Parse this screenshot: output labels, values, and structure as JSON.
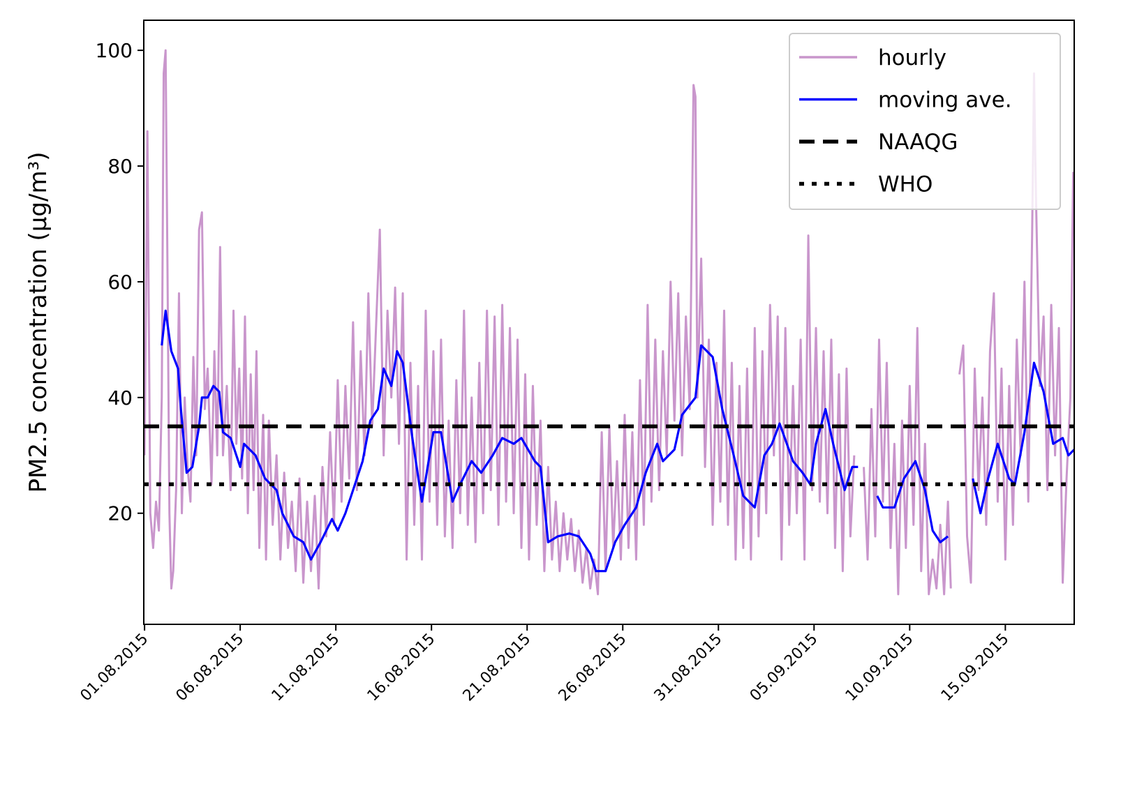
{
  "chart_data": {
    "type": "line",
    "ylabel": "PM2.5 concentration (μg/m³)",
    "xlim": [
      -0.04,
      48.6
    ],
    "ylim": [
      0.8,
      105.2
    ],
    "xticks": [
      {
        "value": 0,
        "label": "01.08.2015"
      },
      {
        "value": 5,
        "label": "06.08.2015"
      },
      {
        "value": 10,
        "label": "11.08.2015"
      },
      {
        "value": 15,
        "label": "16.08.2015"
      },
      {
        "value": 20,
        "label": "21.08.2015"
      },
      {
        "value": 25,
        "label": "26.08.2015"
      },
      {
        "value": 30,
        "label": "31.08.2015"
      },
      {
        "value": 35,
        "label": "05.09.2015"
      },
      {
        "value": 40,
        "label": "10.09.2015"
      },
      {
        "value": 45,
        "label": "15.09.2015"
      }
    ],
    "yticks": [
      20,
      40,
      60,
      80,
      100
    ],
    "legend": "upper right",
    "series": [
      {
        "name": "hourly",
        "color": "#c996cc",
        "x": [
          0,
          0.15,
          0.3,
          0.45,
          0.6,
          0.75,
          0.9,
          1.0,
          1.1,
          1.2,
          1.3,
          1.4,
          1.5,
          1.65,
          1.8,
          1.95,
          2.1,
          2.25,
          2.4,
          2.55,
          2.7,
          2.85,
          3.0,
          3.15,
          3.3,
          3.5,
          3.65,
          3.8,
          3.95,
          4.1,
          4.3,
          4.5,
          4.65,
          4.8,
          4.95,
          5.1,
          5.25,
          5.4,
          5.55,
          5.7,
          5.85,
          6.0,
          6.2,
          6.35,
          6.5,
          6.7,
          6.9,
          7.1,
          7.3,
          7.5,
          7.7,
          7.9,
          8.1,
          8.3,
          8.5,
          8.7,
          8.9,
          9.1,
          9.3,
          9.5,
          9.7,
          9.9,
          10.1,
          10.3,
          10.5,
          10.7,
          10.9,
          11.1,
          11.3,
          11.5,
          11.7,
          11.9,
          12.1,
          12.3,
          12.5,
          12.7,
          12.9,
          13.1,
          13.3,
          13.5,
          13.7,
          13.9,
          14.1,
          14.3,
          14.5,
          14.7,
          14.9,
          15.1,
          15.3,
          15.5,
          15.7,
          15.9,
          16.1,
          16.3,
          16.5,
          16.7,
          16.9,
          17.1,
          17.3,
          17.5,
          17.7,
          17.9,
          18.1,
          18.3,
          18.5,
          18.7,
          18.9,
          19.1,
          19.3,
          19.5,
          19.7,
          19.9,
          20.1,
          20.3,
          20.5,
          20.7,
          20.9,
          21.1,
          21.3,
          21.5,
          21.7,
          21.9,
          22.1,
          22.3,
          22.5,
          22.7,
          22.9,
          23.1,
          23.3,
          23.5,
          23.7,
          23.9,
          24.1,
          24.3,
          24.5,
          24.7,
          24.9,
          25.1,
          25.3,
          25.5,
          25.7,
          25.9,
          26.1,
          26.3,
          26.5,
          26.7,
          26.9,
          27.1,
          27.3,
          27.5,
          27.7,
          27.9,
          28.1,
          28.3,
          28.5,
          28.7,
          28.8,
          28.9,
          29.1,
          29.3,
          29.5,
          29.7,
          29.9,
          30.1,
          30.3,
          30.5,
          30.7,
          30.9,
          31.1,
          31.3,
          31.5,
          31.7,
          31.9,
          32.1,
          32.3,
          32.5,
          32.7,
          32.9,
          33.1,
          33.3,
          33.5,
          33.7,
          33.9,
          34.1,
          34.3,
          34.5,
          34.7,
          34.9,
          35.1,
          35.3,
          35.5,
          35.7,
          35.9,
          36.1,
          36.3,
          36.5,
          36.7,
          36.9,
          37.1,
          37.3,
          37.6,
          37.8,
          38.0,
          38.2,
          38.4,
          38.6,
          38.8,
          39.0,
          39.2,
          39.4,
          39.6,
          39.8,
          40.0,
          40.2,
          40.4,
          40.6,
          40.8,
          41.0,
          41.2,
          41.4,
          41.6,
          41.8,
          42.0,
          42.15,
          42.3,
          42.6,
          42.8,
          43.0,
          43.2,
          43.4,
          43.6,
          43.8,
          44.0,
          44.2,
          44.4,
          44.6,
          44.8,
          45.0,
          45.2,
          45.4,
          45.6,
          45.8,
          46.0,
          46.2,
          46.4,
          46.5,
          46.6,
          46.8,
          47.0,
          47.2,
          47.4,
          47.6,
          47.8,
          48.0,
          48.2,
          48.4,
          48.55
        ],
        "values": [
          30,
          86,
          20,
          14,
          22,
          17,
          40,
          96,
          100,
          62,
          20,
          7,
          10,
          24,
          58,
          20,
          40,
          28,
          22,
          47,
          30,
          69,
          72,
          38,
          45,
          25,
          48,
          30,
          66,
          30,
          42,
          24,
          55,
          32,
          45,
          26,
          54,
          20,
          44,
          24,
          48,
          14,
          37,
          12,
          36,
          18,
          30,
          12,
          27,
          14,
          22,
          10,
          26,
          8,
          22,
          10,
          23,
          7,
          28,
          16,
          34,
          18,
          43,
          22,
          42,
          26,
          53,
          24,
          48,
          30,
          58,
          35,
          52,
          69,
          30,
          55,
          40,
          59,
          32,
          58,
          12,
          46,
          18,
          42,
          12,
          55,
          22,
          48,
          18,
          50,
          16,
          36,
          14,
          43,
          20,
          55,
          18,
          40,
          15,
          46,
          20,
          55,
          24,
          54,
          18,
          56,
          22,
          52,
          20,
          50,
          14,
          44,
          12,
          42,
          18,
          36,
          10,
          28,
          12,
          22,
          10,
          20,
          12,
          19,
          10,
          17,
          8,
          14,
          7,
          12,
          6,
          34,
          10,
          35,
          14,
          29,
          12,
          37,
          14,
          34,
          12,
          43,
          18,
          56,
          22,
          50,
          24,
          48,
          30,
          60,
          36,
          58,
          30,
          54,
          38,
          94,
          92,
          40,
          64,
          28,
          50,
          18,
          46,
          22,
          55,
          18,
          46,
          12,
          42,
          14,
          45,
          12,
          52,
          16,
          48,
          20,
          56,
          30,
          54,
          12,
          52,
          18,
          42,
          20,
          50,
          12,
          68,
          24,
          52,
          22,
          48,
          20,
          50,
          14,
          44,
          10,
          45,
          16,
          30,
          null,
          28,
          12,
          38,
          16,
          50,
          22,
          46,
          14,
          32,
          6,
          36,
          14,
          42,
          18,
          52,
          10,
          32,
          6,
          12,
          7,
          18,
          6,
          22,
          7,
          null,
          44,
          49,
          16,
          8,
          45,
          24,
          40,
          18,
          48,
          58,
          22,
          45,
          12,
          42,
          18,
          50,
          30,
          60,
          22,
          68,
          96,
          75,
          42,
          54,
          24,
          56,
          30,
          52,
          8,
          26,
          40,
          79
        ]
      },
      {
        "name": "moving ave.",
        "color": "#0000ff",
        "x": [
          0.9,
          1.1,
          1.4,
          1.75,
          1.9,
          2.2,
          2.5,
          2.85,
          3.0,
          3.3,
          3.6,
          3.9,
          4.1,
          4.5,
          5.0,
          5.2,
          5.8,
          6.3,
          6.9,
          7.2,
          7.8,
          8.3,
          8.7,
          9.2,
          9.8,
          10.1,
          10.5,
          11.1,
          11.4,
          11.8,
          12.2,
          12.5,
          12.9,
          13.2,
          13.5,
          14.0,
          14.5,
          15.1,
          15.5,
          16.1,
          16.5,
          17.1,
          17.6,
          18.2,
          18.7,
          19.3,
          19.7,
          20.4,
          20.7,
          21.1,
          21.6,
          22.2,
          22.7,
          23.3,
          23.6,
          24.1,
          24.6,
          25.1,
          25.7,
          26.2,
          26.8,
          27.1,
          27.7,
          28.1,
          28.8,
          29.1,
          29.7,
          30.2,
          30.8,
          31.3,
          31.9,
          32.4,
          32.8,
          33.2,
          33.9,
          34.4,
          34.8,
          35.1,
          35.6,
          36.0,
          36.6,
          37.0,
          37.3,
          37.8,
          38.3,
          38.6,
          39.2,
          39.7,
          40.3,
          40.8,
          41.2,
          41.6,
          42.0,
          42.7,
          43.3,
          43.7,
          44.1,
          44.6,
          45.2,
          45.5,
          46.0,
          46.5,
          47.0,
          47.5,
          48.0,
          48.3,
          48.6
        ],
        "values": [
          49,
          55,
          48,
          45,
          38,
          27,
          28,
          35,
          40,
          40,
          42,
          41,
          34,
          33,
          28,
          32,
          30,
          26,
          24,
          20,
          16,
          15,
          12,
          15,
          19,
          17,
          20,
          26,
          29,
          36,
          38,
          45,
          42,
          48,
          46,
          33,
          22,
          34,
          34,
          22,
          25,
          29,
          27,
          30,
          33,
          32,
          33,
          29,
          28,
          15,
          16,
          16.5,
          16,
          13,
          10,
          10,
          15,
          18,
          21,
          27,
          32,
          29,
          31,
          37,
          40,
          49,
          47,
          38,
          30,
          23,
          21,
          30,
          32,
          35.5,
          29,
          27,
          25,
          32,
          38,
          32,
          24,
          28,
          28,
          null,
          23,
          21,
          21,
          26,
          29,
          24,
          17,
          15,
          16,
          null,
          26,
          20,
          26,
          32,
          26,
          25,
          34,
          46,
          41,
          32,
          33,
          30,
          31
        ]
      }
    ],
    "hlines": [
      {
        "name": "NAAQG",
        "value": 35,
        "color": "#000000",
        "style": "dashed"
      },
      {
        "name": "WHO",
        "value": 25,
        "color": "#000000",
        "style": "dotted"
      }
    ]
  }
}
